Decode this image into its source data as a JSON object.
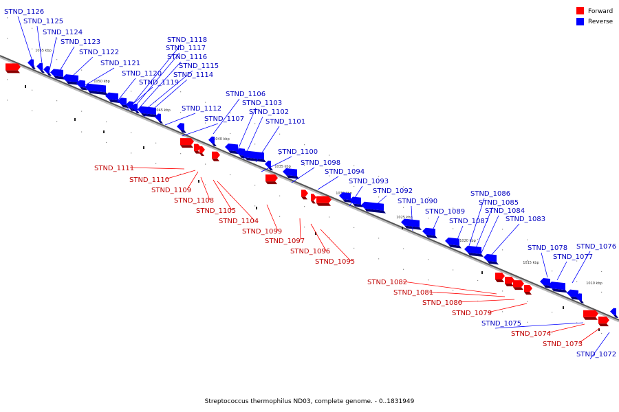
{
  "colors": {
    "forward": "#ff0000",
    "reverse": "#0000ff",
    "forward_label": "#c00000",
    "reverse_label": "#0000c0",
    "backbone": "#555555"
  },
  "legend": {
    "forward": "Forward",
    "reverse": "Reverse"
  },
  "caption": "Streptococcus thermophilus ND03, complete genome. - 0..1831949",
  "ticks": [
    "1055 kbp",
    "1050 kbp",
    "1045 kbp",
    "1040 kbp",
    "1035 kbp",
    "1030 kbp",
    "1025 kbp",
    "1020 kbp",
    "1015 kbp",
    "1010 kbp"
  ],
  "reverse_labels": [
    "STND_1126",
    "STND_1125",
    "STND_1124",
    "STND_1123",
    "STND_1122",
    "STND_1121",
    "STND_1120",
    "STND_1119",
    "STND_1118",
    "STND_1117",
    "STND_1116",
    "STND_1115",
    "STND_1114",
    "STND_1112",
    "STND_1107",
    "STND_1106",
    "STND_1103",
    "STND_1102",
    "STND_1101",
    "STND_1100",
    "STND_1098",
    "STND_1094",
    "STND_1093",
    "STND_1092",
    "STND_1090",
    "STND_1089",
    "STND_1087",
    "STND_1086",
    "STND_1085",
    "STND_1084",
    "STND_1083",
    "STND_1078",
    "STND_1077",
    "STND_1076",
    "STND_1075",
    "STND_1072"
  ],
  "forward_labels": [
    "STND_1111",
    "STND_1110",
    "STND_1109",
    "STND_1108",
    "STND_1105",
    "STND_1104",
    "STND_1099",
    "STND_1097",
    "STND_1096",
    "STND_1095",
    "STND_1082",
    "STND_1081",
    "STND_1080",
    "STND_1079",
    "STND_1074",
    "STND_1073"
  ]
}
